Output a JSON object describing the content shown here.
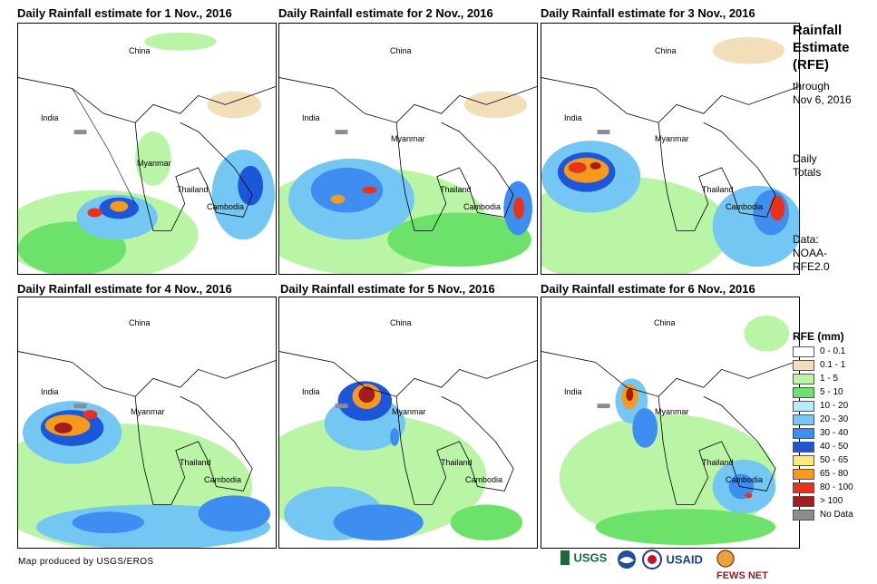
{
  "panels": [
    {
      "title": "Daily Rainfall estimate for 1 Nov., 2016"
    },
    {
      "title": "Daily Rainfall estimate for 2 Nov., 2016"
    },
    {
      "title": "Daily Rainfall estimate for 3 Nov., 2016"
    },
    {
      "title": "Daily Rainfall estimate for 4 Nov., 2016"
    },
    {
      "title": "Daily Rainfall estimate for 5 Nov., 2016"
    },
    {
      "title": "Daily Rainfall estimate for 6 Nov., 2016"
    }
  ],
  "countries": {
    "china": "China",
    "india": "India",
    "myanmar": "Myanmar",
    "thailand": "Thailand",
    "cambodia": "Cambodia"
  },
  "sidebar": {
    "title_line1": "Rainfall",
    "title_line2": "Estimate",
    "title_line3": "(RFE)",
    "through_line1": "through",
    "through_line2": "Nov 6, 2016",
    "daily_line1": "Daily",
    "daily_line2": "Totals",
    "data_line1": "Data:",
    "data_line2": "NOAA-",
    "data_line3": "RFE2.0"
  },
  "legend": {
    "title": "RFE (mm)",
    "items": [
      {
        "label": "0 - 0.1",
        "color": "#ffffff"
      },
      {
        "label": "0.1 - 1",
        "color": "#f2dfb9"
      },
      {
        "label": "1 - 5",
        "color": "#b9f5a5"
      },
      {
        "label": "5 - 10",
        "color": "#6de26a"
      },
      {
        "label": "10 - 20",
        "color": "#b6ecfa"
      },
      {
        "label": "20 - 30",
        "color": "#73c7f2"
      },
      {
        "label": "30 - 40",
        "color": "#3d8ef0"
      },
      {
        "label": "40 - 50",
        "color": "#1c56d9"
      },
      {
        "label": "50 - 65",
        "color": "#fbe97c"
      },
      {
        "label": "65 - 80",
        "color": "#f59a1f"
      },
      {
        "label": "80 - 100",
        "color": "#e8331a"
      },
      {
        "label": "> 100",
        "color": "#a31d1d"
      },
      {
        "label": "No Data",
        "color": "#8c8c8c"
      }
    ]
  },
  "credit": "Map produced by USGS/EROS",
  "logos": {
    "usgs": "USGS",
    "usaid": "USAID",
    "fewsnet": "FEWS NET"
  }
}
